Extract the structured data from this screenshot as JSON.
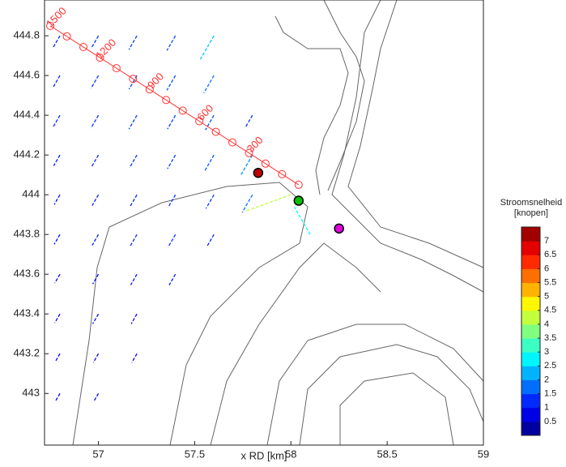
{
  "chart_data": {
    "type": "quiver",
    "x_label": "x RD [km]",
    "xlim": [
      56.72,
      59.0
    ],
    "xticks": [
      57,
      57.5,
      58,
      58.5,
      59
    ],
    "ylim": [
      442.74,
      444.98
    ],
    "yticks": [
      443,
      443.2,
      443.4,
      443.6,
      443.8,
      444,
      444.2,
      444.4,
      444.6,
      444.8
    ],
    "colorbar": {
      "title": "Stroomsnelheid",
      "unit": "[knopen]",
      "clim": [
        0,
        7.5
      ],
      "ticks": [
        0.5,
        1,
        1.5,
        2,
        2.5,
        3,
        3.5,
        4,
        4.5,
        5,
        5.5,
        6,
        6.5,
        7
      ]
    },
    "vectors": {
      "x": [
        56.8,
        57.0,
        57.2,
        57.4,
        57.6,
        56.8,
        57.0,
        57.2,
        57.4,
        57.6,
        56.8,
        57.0,
        57.2,
        57.4,
        57.6,
        57.8,
        56.8,
        57.0,
        57.2,
        57.4,
        57.6,
        57.8,
        56.8,
        57.0,
        57.2,
        57.4,
        57.6,
        57.8,
        58.0,
        56.8,
        57.0,
        57.2,
        57.4,
        57.6,
        58.1,
        56.8,
        57.0,
        57.2,
        57.4,
        56.8,
        57.0,
        57.2,
        56.8,
        57.0,
        57.2,
        56.8,
        57.0
      ],
      "y": [
        444.8,
        444.8,
        444.8,
        444.8,
        444.8,
        444.6,
        444.6,
        444.6,
        444.6,
        444.6,
        444.4,
        444.4,
        444.4,
        444.4,
        444.4,
        444.4,
        444.2,
        444.2,
        444.2,
        444.2,
        444.2,
        444.2,
        444,
        444,
        444,
        444,
        444,
        444,
        444,
        443.8,
        443.8,
        443.8,
        443.8,
        443.8,
        443.8,
        443.6,
        443.6,
        443.6,
        443.6,
        443.4,
        443.4,
        443.4,
        443.2,
        443.2,
        443.2,
        443,
        443
      ],
      "speed": [
        1.2,
        1.3,
        1.4,
        1.5,
        2.4,
        1.2,
        1.3,
        1.4,
        1.5,
        1.8,
        1.2,
        1.3,
        1.4,
        1.4,
        1.5,
        1.3,
        1.1,
        1.2,
        1.3,
        1.4,
        1.6,
        2.0,
        1.0,
        1.1,
        1.2,
        1.3,
        1.4,
        1.8,
        4.2,
        1.0,
        1.1,
        1.2,
        1.3,
        1.2,
        2.8,
        0.9,
        1.0,
        1.1,
        1.1,
        0.9,
        1.0,
        1.0,
        0.8,
        0.9,
        0.9,
        0.8,
        0.8
      ],
      "angle": [
        240,
        240,
        240,
        240,
        240,
        240,
        240,
        240,
        240,
        240,
        240,
        240,
        240,
        240,
        240,
        240,
        240,
        240,
        240,
        240,
        240,
        240,
        240,
        240,
        240,
        240,
        240,
        240,
        200,
        240,
        240,
        240,
        240,
        240,
        120,
        240,
        240,
        240,
        240,
        240,
        240,
        240,
        240,
        240,
        240,
        240,
        240
      ]
    },
    "points": {
      "x": [
        57.83,
        58.04,
        58.25
      ],
      "y": [
        444.11,
        443.97,
        443.83
      ],
      "colors": [
        "#c00000",
        "#00c000",
        "#e000e0"
      ]
    },
    "transect": {
      "x": [
        56.75,
        58.04
      ],
      "y": [
        444.85,
        444.05
      ],
      "color": "#ff3030",
      "distances": [
        300,
        600,
        900,
        1200,
        1500
      ]
    }
  }
}
